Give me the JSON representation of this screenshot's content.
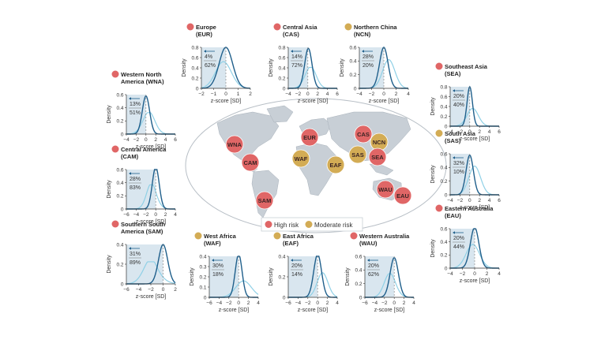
{
  "colors": {
    "dark_curve": "#1f5f8b",
    "light_curve": "#8fd0e6",
    "shade": "#d9e6ef",
    "high_risk": "#e06666",
    "moderate_risk": "#d3ac55",
    "land": "#c8cfd6",
    "land_edge": "#a8b1ba",
    "dashed": "#8a8a8a"
  },
  "legend": {
    "high": "High risk",
    "moderate": "Moderate risk"
  },
  "map_labels": [
    {
      "code": "WNA",
      "risk": "high"
    },
    {
      "code": "CAM",
      "risk": "high"
    },
    {
      "code": "SAM",
      "risk": "high"
    },
    {
      "code": "EUR",
      "risk": "high"
    },
    {
      "code": "WAF",
      "risk": "moderate"
    },
    {
      "code": "EAF",
      "risk": "moderate"
    },
    {
      "code": "CAS",
      "risk": "high"
    },
    {
      "code": "SAS",
      "risk": "moderate"
    },
    {
      "code": "NCN",
      "risk": "moderate"
    },
    {
      "code": "SEA",
      "risk": "high"
    },
    {
      "code": "WAU",
      "risk": "high"
    },
    {
      "code": "EAU",
      "risk": "high"
    }
  ],
  "chart_data": [
    {
      "type": "area",
      "code": "EUR",
      "title": "Europe\n(EUR)",
      "risk": "high",
      "ylabel": "Density",
      "xlabel": "z-score [SD]",
      "xlim": [
        -2,
        2
      ],
      "xticks": [
        -2,
        -1,
        0,
        1,
        2
      ],
      "ylim": [
        0,
        0.8
      ],
      "yticks": [
        0,
        0.2,
        0.4,
        0.6,
        0.8
      ],
      "pct_top": "4%",
      "pct_bottom": "62%",
      "series": [
        {
          "shade": "dark",
          "peak": 0.8,
          "mu": 0.0,
          "sd": 0.55,
          "skew": 0
        },
        {
          "shade": "light",
          "peak": 0.52,
          "mu": -0.2,
          "sd": 0.65,
          "skew": 0
        }
      ]
    },
    {
      "type": "area",
      "code": "CAS",
      "title": "Central Asia\n(CAS)",
      "risk": "high",
      "ylabel": "Density",
      "xlabel": "z-score [SD]",
      "xlim": [
        -4,
        6
      ],
      "xticks": [
        -4,
        -2,
        0,
        2,
        4,
        6
      ],
      "ylim": [
        0,
        0.8
      ],
      "yticks": [
        0,
        0.2,
        0.4,
        0.6,
        0.8
      ],
      "pct_top": "14%",
      "pct_bottom": "72%",
      "series": [
        {
          "shade": "dark",
          "peak": 0.78,
          "mu": 0.1,
          "sd": 0.75,
          "skew": 0
        },
        {
          "shade": "light",
          "peak": 0.4,
          "mu": 0.2,
          "sd": 1.2,
          "skew": 0.8
        }
      ]
    },
    {
      "type": "area",
      "code": "NCN",
      "title": "Northern China\n(NCN)",
      "risk": "moderate",
      "ylabel": "Density",
      "xlabel": "z-score [SD]",
      "xlim": [
        -4,
        4
      ],
      "xticks": [
        -4,
        -2,
        0,
        2,
        4
      ],
      "ylim": [
        0,
        0.6
      ],
      "yticks": [
        0,
        0.2,
        0.4,
        0.6
      ],
      "pct_top": "28%",
      "pct_bottom": "20%",
      "series": [
        {
          "shade": "dark",
          "peak": 0.6,
          "mu": 0.0,
          "sd": 0.7,
          "skew": 0
        },
        {
          "shade": "light",
          "peak": 0.42,
          "mu": 0.8,
          "sd": 1.0,
          "skew": 0
        }
      ]
    },
    {
      "type": "area",
      "code": "WNA",
      "title": "Western North\nAmerica (WNA)",
      "risk": "high",
      "ylabel": "Density",
      "xlabel": "z-score [SD]",
      "xlim": [
        -4,
        6
      ],
      "xticks": [
        -4,
        -2,
        0,
        2,
        4,
        6
      ],
      "ylim": [
        0,
        0.6
      ],
      "yticks": [
        0,
        0.2,
        0.4,
        0.6
      ],
      "pct_top": "13%",
      "pct_bottom": "51%",
      "series": [
        {
          "shade": "dark",
          "peak": 0.58,
          "mu": 0.0,
          "sd": 0.75,
          "skew": 0
        },
        {
          "shade": "light",
          "peak": 0.32,
          "mu": 0.2,
          "sd": 1.3,
          "skew": 0.8
        }
      ]
    },
    {
      "type": "area",
      "code": "CAM",
      "title": "Central America\n(CAM)",
      "risk": "high",
      "ylabel": "Density",
      "xlabel": "z-score [SD]",
      "xlim": [
        -6,
        4
      ],
      "xticks": [
        -6,
        -4,
        -2,
        0,
        2,
        4
      ],
      "ylim": [
        0,
        0.6
      ],
      "yticks": [
        0,
        0.2,
        0.4,
        0.6
      ],
      "pct_top": "28%",
      "pct_bottom": "83%",
      "series": [
        {
          "shade": "dark",
          "peak": 0.64,
          "mu": 0.0,
          "sd": 0.7,
          "skew": 0
        },
        {
          "shade": "light",
          "peak": 0.36,
          "mu": -0.5,
          "sd": 1.1,
          "skew": -1.0
        }
      ]
    },
    {
      "type": "area",
      "code": "SAM",
      "title": "Southern South\nAmerica (SAM)",
      "risk": "high",
      "ylabel": "Density",
      "xlabel": "z-score [SD]",
      "xlim": [
        -6,
        2
      ],
      "xticks": [
        -6,
        -4,
        -2,
        0,
        2
      ],
      "ylim": [
        0,
        0.4
      ],
      "yticks": [
        0,
        0.2,
        0.4
      ],
      "pct_top": "31%",
      "pct_bottom": "89%",
      "series": [
        {
          "shade": "dark",
          "peak": 0.4,
          "mu": 0.0,
          "sd": 0.75,
          "skew": 0
        },
        {
          "shade": "light",
          "peak": 0.22,
          "mu": -1.4,
          "sd": 1.4,
          "skew": -1.5
        }
      ]
    },
    {
      "type": "area",
      "code": "SEA",
      "title": "Southeast Asia\n(SEA)",
      "risk": "high",
      "ylabel": "Density",
      "xlabel": "z-score [SD]",
      "xlim": [
        -4,
        6
      ],
      "xticks": [
        -4,
        -2,
        0,
        2,
        4,
        6
      ],
      "ylim": [
        0,
        0.8
      ],
      "yticks": [
        0,
        0.2,
        0.4,
        0.6,
        0.8
      ],
      "pct_top": "20%",
      "pct_bottom": "40%",
      "series": [
        {
          "shade": "dark",
          "peak": 0.8,
          "mu": 0.0,
          "sd": 0.55,
          "skew": 0
        },
        {
          "shade": "light",
          "peak": 0.35,
          "mu": 0.3,
          "sd": 1.2,
          "skew": 0.6
        }
      ]
    },
    {
      "type": "area",
      "code": "SAS",
      "title": "South Asia\n(SAS)",
      "risk": "moderate",
      "ylabel": "Density",
      "xlabel": "z-score [SD]",
      "xlim": [
        -4,
        6
      ],
      "xticks": [
        -4,
        -2,
        0,
        2,
        4,
        6
      ],
      "ylim": [
        0,
        0.6
      ],
      "yticks": [
        0,
        0.2,
        0.4,
        0.6
      ],
      "pct_top": "32%",
      "pct_bottom": "10%",
      "series": [
        {
          "shade": "dark",
          "peak": 0.58,
          "mu": 0.0,
          "sd": 0.75,
          "skew": 0
        },
        {
          "shade": "light",
          "peak": 0.42,
          "mu": 1.0,
          "sd": 1.2,
          "skew": 0
        }
      ]
    },
    {
      "type": "area",
      "code": "EAU",
      "title": "Eastern Australia\n(EAU)",
      "risk": "high",
      "ylabel": "Density",
      "xlabel": "z-score [SD]",
      "xlim": [
        -4,
        4
      ],
      "xticks": [
        -4,
        -2,
        0,
        2,
        4
      ],
      "ylim": [
        0,
        0.6
      ],
      "yticks": [
        0,
        0.2,
        0.4,
        0.6
      ],
      "pct_top": "20%",
      "pct_bottom": "44%",
      "series": [
        {
          "shade": "dark",
          "peak": 0.62,
          "mu": 0.0,
          "sd": 0.7,
          "skew": 0
        },
        {
          "shade": "light",
          "peak": 0.36,
          "mu": -0.3,
          "sd": 1.1,
          "skew": 0
        }
      ]
    },
    {
      "type": "area",
      "code": "WAF",
      "title": "West Africa\n(WAF)",
      "risk": "moderate",
      "ylabel": "Density",
      "xlabel": "z-score [SD]",
      "xlim": [
        -6,
        4
      ],
      "xticks": [
        -6,
        -4,
        -2,
        0,
        2,
        4
      ],
      "ylim": [
        0,
        0.4
      ],
      "yticks": [
        0,
        0.1,
        0.2,
        0.3,
        0.4
      ],
      "pct_top": "30%",
      "pct_bottom": "18%",
      "series": [
        {
          "shade": "dark",
          "peak": 0.42,
          "mu": 0.0,
          "sd": 0.7,
          "skew": 0
        },
        {
          "shade": "light",
          "peak": 0.16,
          "mu": 1.0,
          "sd": 1.6,
          "skew": 0
        }
      ]
    },
    {
      "type": "area",
      "code": "EAF",
      "title": "East Africa\n(EAF)",
      "risk": "moderate",
      "ylabel": "Density",
      "xlabel": "z-score [SD]",
      "xlim": [
        -6,
        4
      ],
      "xticks": [
        -6,
        -4,
        -2,
        0,
        2,
        4
      ],
      "ylim": [
        0,
        0.4
      ],
      "yticks": [
        0,
        0.2,
        0.4
      ],
      "pct_top": "20%",
      "pct_bottom": "14%",
      "series": [
        {
          "shade": "dark",
          "peak": 0.42,
          "mu": 0.0,
          "sd": 0.8,
          "skew": 0
        },
        {
          "shade": "light",
          "peak": 0.24,
          "mu": 1.0,
          "sd": 1.1,
          "skew": 0
        }
      ]
    },
    {
      "type": "area",
      "code": "WAU",
      "title": "Western Australia\n(WAU)",
      "risk": "high",
      "ylabel": "Density",
      "xlabel": "z-score [SD]",
      "xlim": [
        -6,
        4
      ],
      "xticks": [
        -6,
        -4,
        -2,
        0,
        2,
        4
      ],
      "ylim": [
        0,
        0.6
      ],
      "yticks": [
        0,
        0.2,
        0.4,
        0.6
      ],
      "pct_top": "20%",
      "pct_bottom": "62%",
      "series": [
        {
          "shade": "dark",
          "peak": 0.58,
          "mu": 0.0,
          "sd": 0.85,
          "skew": 0
        },
        {
          "shade": "light",
          "peak": 0.34,
          "mu": -0.6,
          "sd": 1.2,
          "skew": -0.6
        }
      ]
    }
  ]
}
